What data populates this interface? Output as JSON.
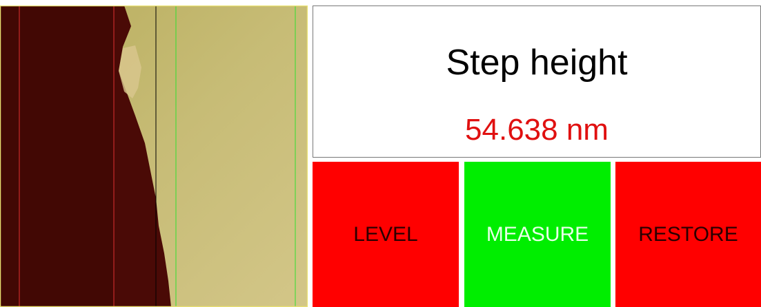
{
  "panel": {
    "title": "Step height",
    "value": "54.638 nm"
  },
  "buttons": [
    "LEVEL",
    "MEASURE",
    "RESTORE"
  ]
}
